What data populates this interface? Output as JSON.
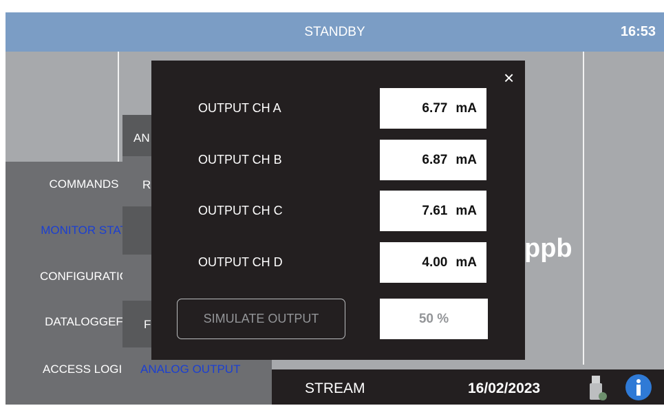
{
  "header": {
    "status": "STANDBY",
    "time": "16:53"
  },
  "menu": [
    "COMMANDS",
    "MONITOR STAT",
    "CONFIGURATIC",
    "DATALOGGEF",
    "ACCESS LOGII"
  ],
  "submenu": [
    "AN",
    "R",
    "F",
    "ANALOG OUTPUT"
  ],
  "main": {
    "unit": "ppb"
  },
  "dialog": {
    "close": "×",
    "outputs": [
      {
        "label": "OUTPUT CH A",
        "value": "6.77",
        "unit": "mA"
      },
      {
        "label": "OUTPUT CH B",
        "value": "6.87",
        "unit": "mA"
      },
      {
        "label": "OUTPUT CH C",
        "value": "7.61",
        "unit": "mA"
      },
      {
        "label": "OUTPUT CH D",
        "value": "4.00",
        "unit": "mA"
      }
    ],
    "simulate": "SIMULATE OUTPUT",
    "percent": "50 %"
  },
  "footer": {
    "stream": "STREAM",
    "date": "16/02/2023"
  }
}
